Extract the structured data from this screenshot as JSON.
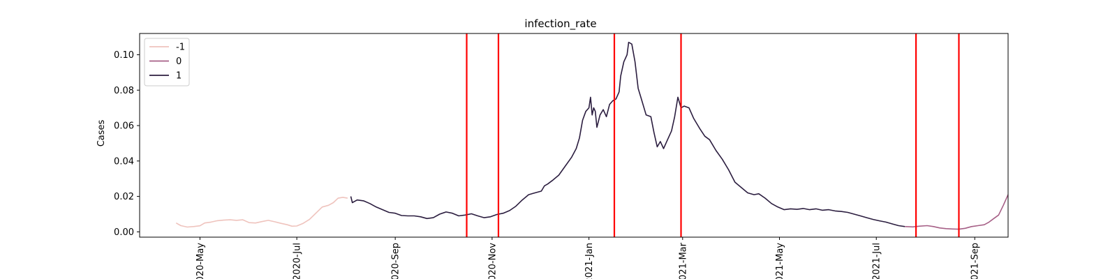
{
  "chart_data": {
    "type": "line",
    "title": "infection_rate",
    "xlabel": "",
    "ylabel": "Cases",
    "x_axis_type": "date",
    "xlim": [
      "2020-03-24",
      "2021-09-22"
    ],
    "ylim": [
      -0.003,
      0.112
    ],
    "grid": false,
    "legend_position": "top-left",
    "x_ticks": [
      "2020-05-01",
      "2020-07-01",
      "2020-09-01",
      "2020-11-01",
      "2021-01-01",
      "2021-03-01",
      "2021-05-01",
      "2021-07-01",
      "2021-09-01"
    ],
    "x_tick_labels": [
      "2020-May",
      "2020-Jul",
      "2020-Sep",
      "2020-Nov",
      "2021-Jan",
      "2021-Mar",
      "2021-May",
      "2021-Jul",
      "2021-Sep"
    ],
    "y_ticks": [
      0.0,
      0.02,
      0.04,
      0.06,
      0.08,
      0.1
    ],
    "y_tick_labels": [
      "0.00",
      "0.02",
      "0.04",
      "0.06",
      "0.08",
      "0.10"
    ],
    "vlines": {
      "color": "#ff0000",
      "dates": [
        "2020-10-16",
        "2020-11-05",
        "2021-01-17",
        "2021-02-28",
        "2021-07-26",
        "2021-08-22"
      ]
    },
    "series": [
      {
        "name": "-1",
        "color": "#efc3bd",
        "points": [
          [
            "2020-04-16",
            0.005
          ],
          [
            "2020-04-19",
            0.0035
          ],
          [
            "2020-04-23",
            0.0027
          ],
          [
            "2020-04-27",
            0.003
          ],
          [
            "2020-05-01",
            0.0034
          ],
          [
            "2020-05-04",
            0.005
          ],
          [
            "2020-05-08",
            0.0055
          ],
          [
            "2020-05-12",
            0.0063
          ],
          [
            "2020-05-16",
            0.0066
          ],
          [
            "2020-05-20",
            0.0068
          ],
          [
            "2020-05-24",
            0.0065
          ],
          [
            "2020-05-28",
            0.0068
          ],
          [
            "2020-06-01",
            0.0052
          ],
          [
            "2020-06-05",
            0.005
          ],
          [
            "2020-06-09",
            0.0058
          ],
          [
            "2020-06-13",
            0.0065
          ],
          [
            "2020-06-17",
            0.0057
          ],
          [
            "2020-06-21",
            0.0048
          ],
          [
            "2020-06-25",
            0.004
          ],
          [
            "2020-06-28",
            0.0032
          ],
          [
            "2020-07-01",
            0.0033
          ],
          [
            "2020-07-05",
            0.0048
          ],
          [
            "2020-07-09",
            0.007
          ],
          [
            "2020-07-13",
            0.0105
          ],
          [
            "2020-07-17",
            0.014
          ],
          [
            "2020-07-21",
            0.015
          ],
          [
            "2020-07-24",
            0.0165
          ],
          [
            "2020-07-27",
            0.019
          ],
          [
            "2020-07-30",
            0.0195
          ],
          [
            "2020-08-02",
            0.019
          ]
        ]
      },
      {
        "name": "1",
        "color": "#2b1d3f",
        "points": [
          [
            "2020-08-04",
            0.02
          ],
          [
            "2020-08-05",
            0.0165
          ],
          [
            "2020-08-08",
            0.018
          ],
          [
            "2020-08-12",
            0.0175
          ],
          [
            "2020-08-16",
            0.016
          ],
          [
            "2020-08-20",
            0.014
          ],
          [
            "2020-08-24",
            0.0125
          ],
          [
            "2020-08-28",
            0.011
          ],
          [
            "2020-09-01",
            0.0105
          ],
          [
            "2020-09-05",
            0.0092
          ],
          [
            "2020-09-09",
            0.009
          ],
          [
            "2020-09-13",
            0.009
          ],
          [
            "2020-09-17",
            0.0085
          ],
          [
            "2020-09-21",
            0.0075
          ],
          [
            "2020-09-25",
            0.008
          ],
          [
            "2020-09-29",
            0.01
          ],
          [
            "2020-10-03",
            0.0112
          ],
          [
            "2020-10-07",
            0.0105
          ],
          [
            "2020-10-11",
            0.009
          ],
          [
            "2020-10-15",
            0.0095
          ],
          [
            "2020-10-19",
            0.0102
          ],
          [
            "2020-10-23",
            0.009
          ],
          [
            "2020-10-27",
            0.008
          ],
          [
            "2020-10-31",
            0.0085
          ],
          [
            "2020-11-04",
            0.0098
          ],
          [
            "2020-11-08",
            0.0105
          ],
          [
            "2020-11-12",
            0.012
          ],
          [
            "2020-11-16",
            0.0145
          ],
          [
            "2020-11-20",
            0.018
          ],
          [
            "2020-11-24",
            0.021
          ],
          [
            "2020-11-28",
            0.022
          ],
          [
            "2020-12-02",
            0.023
          ],
          [
            "2020-12-04",
            0.026
          ],
          [
            "2020-12-06",
            0.027
          ],
          [
            "2020-12-09",
            0.029
          ],
          [
            "2020-12-13",
            0.032
          ],
          [
            "2020-12-17",
            0.037
          ],
          [
            "2020-12-21",
            0.042
          ],
          [
            "2020-12-24",
            0.047
          ],
          [
            "2020-12-26",
            0.053
          ],
          [
            "2020-12-28",
            0.063
          ],
          [
            "2020-12-30",
            0.068
          ],
          [
            "2021-01-01",
            0.07
          ],
          [
            "2021-01-02",
            0.076
          ],
          [
            "2021-01-03",
            0.066
          ],
          [
            "2021-01-04",
            0.07
          ],
          [
            "2021-01-05",
            0.068
          ],
          [
            "2021-01-06",
            0.059
          ],
          [
            "2021-01-08",
            0.066
          ],
          [
            "2021-01-10",
            0.069
          ],
          [
            "2021-01-12",
            0.065
          ],
          [
            "2021-01-14",
            0.072
          ],
          [
            "2021-01-16",
            0.074
          ],
          [
            "2021-01-18",
            0.075
          ],
          [
            "2021-01-20",
            0.079
          ],
          [
            "2021-01-21",
            0.088
          ],
          [
            "2021-01-23",
            0.096
          ],
          [
            "2021-01-25",
            0.1
          ],
          [
            "2021-01-26",
            0.107
          ],
          [
            "2021-01-28",
            0.106
          ],
          [
            "2021-01-30",
            0.096
          ],
          [
            "2021-02-01",
            0.081
          ],
          [
            "2021-02-03",
            0.075
          ],
          [
            "2021-02-06",
            0.066
          ],
          [
            "2021-02-09",
            0.065
          ],
          [
            "2021-02-11",
            0.056
          ],
          [
            "2021-02-13",
            0.048
          ],
          [
            "2021-02-15",
            0.051
          ],
          [
            "2021-02-17",
            0.047
          ],
          [
            "2021-02-19",
            0.051
          ],
          [
            "2021-02-22",
            0.057
          ],
          [
            "2021-02-24",
            0.065
          ],
          [
            "2021-02-26",
            0.076
          ],
          [
            "2021-02-28",
            0.07
          ],
          [
            "2021-03-02",
            0.071
          ],
          [
            "2021-03-05",
            0.07
          ],
          [
            "2021-03-08",
            0.064
          ],
          [
            "2021-03-12",
            0.058
          ],
          [
            "2021-03-15",
            0.054
          ],
          [
            "2021-03-18",
            0.052
          ],
          [
            "2021-03-22",
            0.046
          ],
          [
            "2021-03-26",
            0.041
          ],
          [
            "2021-03-30",
            0.035
          ],
          [
            "2021-04-03",
            0.028
          ],
          [
            "2021-04-07",
            0.025
          ],
          [
            "2021-04-11",
            0.022
          ],
          [
            "2021-04-15",
            0.021
          ],
          [
            "2021-04-18",
            0.0215
          ],
          [
            "2021-04-22",
            0.019
          ],
          [
            "2021-04-26",
            0.016
          ],
          [
            "2021-04-30",
            0.014
          ],
          [
            "2021-05-04",
            0.0125
          ],
          [
            "2021-05-08",
            0.013
          ],
          [
            "2021-05-12",
            0.0127
          ],
          [
            "2021-05-16",
            0.0132
          ],
          [
            "2021-05-20",
            0.0125
          ],
          [
            "2021-05-24",
            0.013
          ],
          [
            "2021-05-28",
            0.0122
          ],
          [
            "2021-06-01",
            0.0125
          ],
          [
            "2021-06-05",
            0.0118
          ],
          [
            "2021-06-09",
            0.0115
          ],
          [
            "2021-06-13",
            0.011
          ],
          [
            "2021-06-17",
            0.01
          ],
          [
            "2021-06-21",
            0.009
          ],
          [
            "2021-06-25",
            0.008
          ],
          [
            "2021-06-29",
            0.007
          ],
          [
            "2021-07-03",
            0.0062
          ],
          [
            "2021-07-07",
            0.0055
          ],
          [
            "2021-07-11",
            0.0045
          ],
          [
            "2021-07-15",
            0.0035
          ],
          [
            "2021-07-19",
            0.003
          ]
        ]
      },
      {
        "name": "0",
        "color": "#a65f86",
        "points": [
          [
            "2021-07-19",
            0.003
          ],
          [
            "2021-07-24",
            0.0028
          ],
          [
            "2021-07-28",
            0.0032
          ],
          [
            "2021-08-02",
            0.0035
          ],
          [
            "2021-08-06",
            0.003
          ],
          [
            "2021-08-10",
            0.0022
          ],
          [
            "2021-08-14",
            0.0018
          ],
          [
            "2021-08-18",
            0.0016
          ],
          [
            "2021-08-22",
            0.0015
          ],
          [
            "2021-08-26",
            0.002
          ],
          [
            "2021-08-30",
            0.003
          ],
          [
            "2021-09-03",
            0.0035
          ],
          [
            "2021-09-07",
            0.004
          ],
          [
            "2021-09-10",
            0.0055
          ],
          [
            "2021-09-13",
            0.0075
          ],
          [
            "2021-09-16",
            0.0095
          ],
          [
            "2021-09-19",
            0.015
          ],
          [
            "2021-09-22",
            0.021
          ],
          [
            "2021-09-25",
            0.0245
          ],
          [
            "2021-09-27",
            0.023
          ]
        ]
      }
    ],
    "legend_order": [
      "-1",
      "0",
      "1"
    ]
  }
}
